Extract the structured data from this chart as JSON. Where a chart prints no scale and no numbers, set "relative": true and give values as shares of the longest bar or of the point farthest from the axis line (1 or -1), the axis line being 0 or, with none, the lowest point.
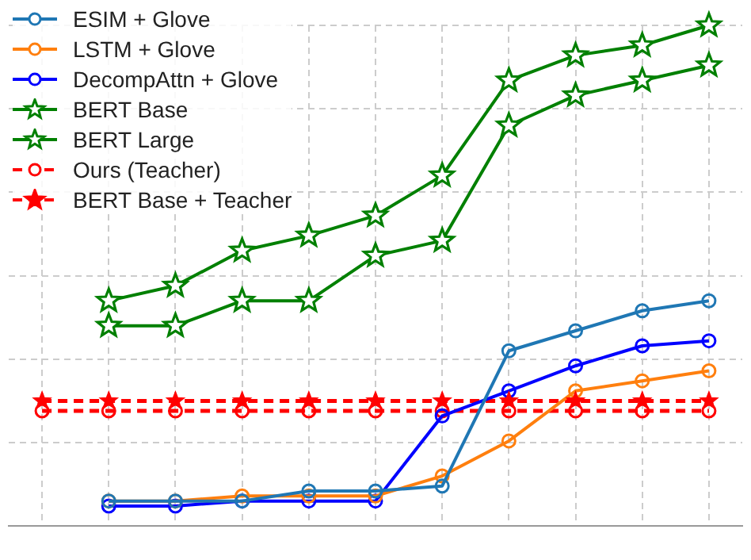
{
  "chart_data": {
    "type": "line",
    "relative": true,
    "grid": true,
    "legend": "top left",
    "categories": [
      null,
      null,
      null,
      null,
      null,
      null,
      null,
      null,
      null,
      null,
      null
    ],
    "series": [
      {
        "name": "ESIM + Glove",
        "color": "#1f77b4",
        "marker": "circle",
        "line_style": "solid",
        "values": [
          null,
          0.05,
          0.05,
          0.05,
          0.07,
          0.07,
          0.08,
          0.35,
          0.39,
          0.43,
          0.45
        ]
      },
      {
        "name": "LSTM  + Glove",
        "color": "#ff7f0e",
        "marker": "circle",
        "line_style": "solid",
        "values": [
          null,
          0.05,
          0.05,
          0.06,
          0.06,
          0.06,
          0.1,
          0.17,
          0.27,
          0.29,
          0.31
        ]
      },
      {
        "name": "DecompAttn  + Glove",
        "color": "#0000ff",
        "marker": "circle",
        "line_style": "solid",
        "values": [
          null,
          0.04,
          0.04,
          0.05,
          0.05,
          0.05,
          0.22,
          0.27,
          0.32,
          0.36,
          0.37
        ]
      },
      {
        "name": "BERT Base",
        "color": "#008000",
        "marker": "star",
        "line_style": "solid",
        "values": [
          null,
          0.45,
          0.48,
          0.55,
          0.58,
          0.62,
          0.7,
          0.89,
          0.94,
          0.96,
          1
        ]
      },
      {
        "name": "BERT Large",
        "color": "#008000",
        "marker": "star",
        "line_style": "solid",
        "values": [
          null,
          0.4,
          0.4,
          0.45,
          0.45,
          0.54,
          0.57,
          0.8,
          0.86,
          0.89,
          0.92
        ]
      },
      {
        "name": "Ours (Teacher)",
        "color": "#ff0000",
        "marker": "circle",
        "line_style": "dashed",
        "values": [
          0.23,
          0.23,
          0.23,
          0.23,
          0.23,
          0.23,
          0.23,
          0.23,
          0.23,
          0.23,
          0.23
        ]
      },
      {
        "name": "BERT Base + Teacher",
        "color": "#ff0000",
        "marker": "star",
        "line_style": "dashed",
        "values": [
          0.25,
          0.25,
          0.25,
          0.25,
          0.25,
          0.25,
          0.25,
          0.25,
          0.25,
          0.25,
          0.25
        ]
      }
    ]
  }
}
